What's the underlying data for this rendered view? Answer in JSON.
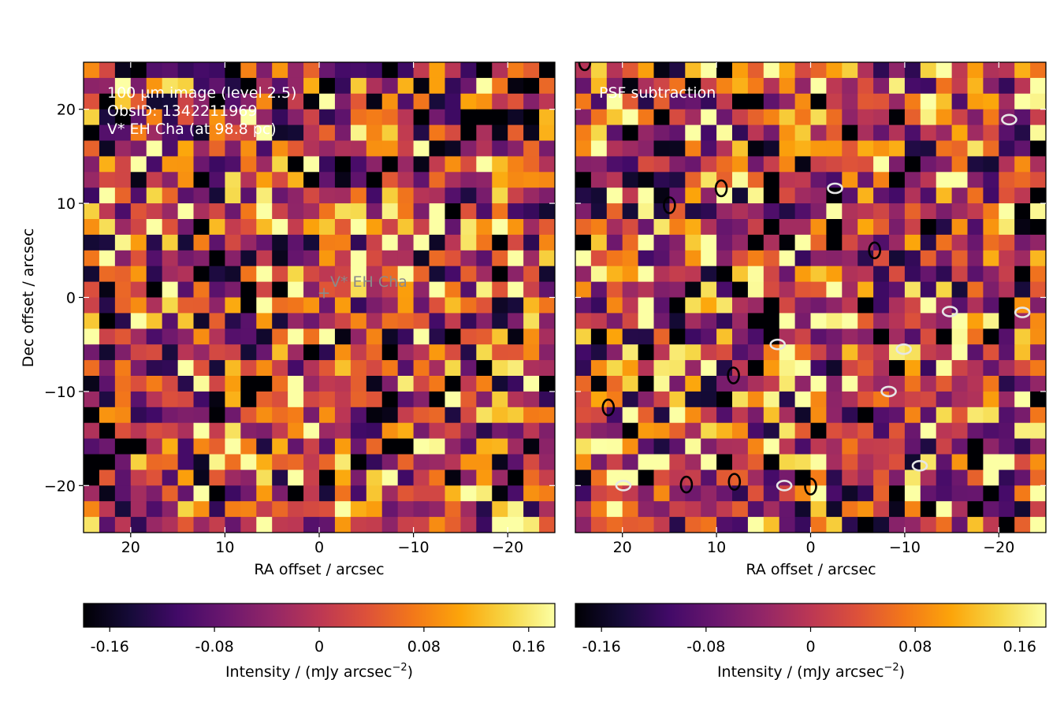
{
  "chart_data": [
    {
      "type": "heatmap",
      "title": "",
      "annotation_lines": [
        "100 µm image (level 2.5)",
        "ObsID: 1342211969",
        "V* EH Cha (at 98.8 pc)"
      ],
      "source_marker": {
        "label": "V* EH Cha",
        "x": -0.5,
        "y": 0.5
      },
      "xlabel": "RA offset / arcsec",
      "ylabel": "Dec offset / arcsec",
      "xlim": [
        25,
        -25
      ],
      "ylim": [
        -25,
        25
      ],
      "xticks": [
        20,
        10,
        0,
        -10,
        -20
      ],
      "xtick_labels": [
        "20",
        "10",
        "0",
        "−10",
        "−20"
      ],
      "yticks": [
        20,
        10,
        0,
        -10,
        -20
      ],
      "ytick_labels": [
        "20",
        "10",
        "0",
        "−10",
        "−20"
      ],
      "pixel_grid": {
        "cols": 30,
        "rows": 30,
        "seed": 1969
      },
      "colormap": "inferno",
      "colorbar": {
        "range": [
          -0.18,
          0.18
        ],
        "ticks": [
          -0.16,
          -0.08,
          0,
          0.08,
          0.16
        ],
        "tick_labels": [
          "-0.16",
          "-0.08",
          "0",
          "0.08",
          "0.16"
        ],
        "label_main": "Intensity / (mJy arcsec",
        "label_exp": "−2",
        "label_end": ")"
      }
    },
    {
      "type": "heatmap",
      "title": "",
      "annotation_lines": [
        "PSF subtraction"
      ],
      "xlabel": "RA offset / arcsec",
      "xlim": [
        25,
        -25
      ],
      "ylim": [
        -25,
        25
      ],
      "xticks": [
        20,
        10,
        0,
        -10,
        -20
      ],
      "xtick_labels": [
        "20",
        "10",
        "0",
        "−10",
        "−20"
      ],
      "pixel_grid": {
        "cols": 30,
        "rows": 30,
        "seed": 4242
      },
      "colormap": "inferno",
      "contours": {
        "negative": [
          [
            -8.3,
            -10
          ],
          [
            -9.9,
            -5.5
          ],
          [
            -2.6,
            11.6
          ],
          [
            3.5,
            -5
          ],
          [
            -14.8,
            -1.5
          ],
          [
            -11.6,
            -17.9
          ],
          [
            19.9,
            -20
          ],
          [
            2.8,
            -20
          ],
          [
            -22.5,
            -1.6
          ],
          [
            -21.1,
            18.9
          ]
        ],
        "positive": [
          [
            15,
            9.8
          ],
          [
            9.5,
            11.6
          ],
          [
            8.1,
            -19.6
          ],
          [
            21.5,
            -11.7
          ],
          [
            -6.8,
            5
          ],
          [
            24,
            25
          ],
          [
            13.2,
            -19.9
          ],
          [
            8.2,
            -8.3
          ],
          [
            0,
            -20.1
          ]
        ]
      },
      "colorbar": {
        "range": [
          -0.18,
          0.18
        ],
        "ticks": [
          -0.16,
          -0.08,
          0,
          0.08,
          0.16
        ],
        "tick_labels": [
          "-0.16",
          "-0.08",
          "0",
          "0.08",
          "0.16"
        ],
        "label_main": "Intensity / (mJy arcsec",
        "label_exp": "−2",
        "label_end": ")"
      }
    }
  ]
}
